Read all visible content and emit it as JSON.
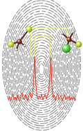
{
  "chart_data": {
    "type": "line",
    "x": [
      0,
      1,
      2,
      3,
      4,
      5,
      6,
      7,
      8,
      9,
      10,
      11,
      12,
      13,
      14,
      15,
      16,
      17,
      18,
      19,
      20,
      21,
      22,
      23,
      24,
      25,
      26,
      27,
      28,
      29,
      30,
      31,
      32,
      33,
      34,
      35,
      36,
      37,
      38,
      39,
      40,
      41,
      42,
      43,
      44,
      45,
      46,
      47,
      48,
      49,
      50,
      51,
      52,
      53,
      54,
      55,
      56,
      57,
      58,
      59
    ],
    "values": [
      0.8,
      1.5,
      0.6,
      1.2,
      2.0,
      0.9,
      1.4,
      0.7,
      1.8,
      1.1,
      0.5,
      1.6,
      2.2,
      1.0,
      0.8,
      1.9,
      1.3,
      0.6,
      1.7,
      2.4,
      1.2,
      1.8,
      4.5,
      9.6,
      3.8,
      1.5,
      0.9,
      1.6,
      1.1,
      2.0,
      0.8,
      1.4,
      1.9,
      1.0,
      1.6,
      2.3,
      4.8,
      9.4,
      3.5,
      1.3,
      1.8,
      0.7,
      1.5,
      2.1,
      0.9,
      1.3,
      1.7,
      0.6,
      1.2,
      1.9,
      0.8,
      1.4,
      1.0,
      1.6,
      0.7,
      1.3,
      0.9,
      1.5,
      0.6,
      1.1
    ],
    "color": "#e8321e",
    "xlim": [
      0,
      59
    ],
    "ylim": [
      0,
      10
    ],
    "tick_labels": false,
    "grid": false
  }
}
